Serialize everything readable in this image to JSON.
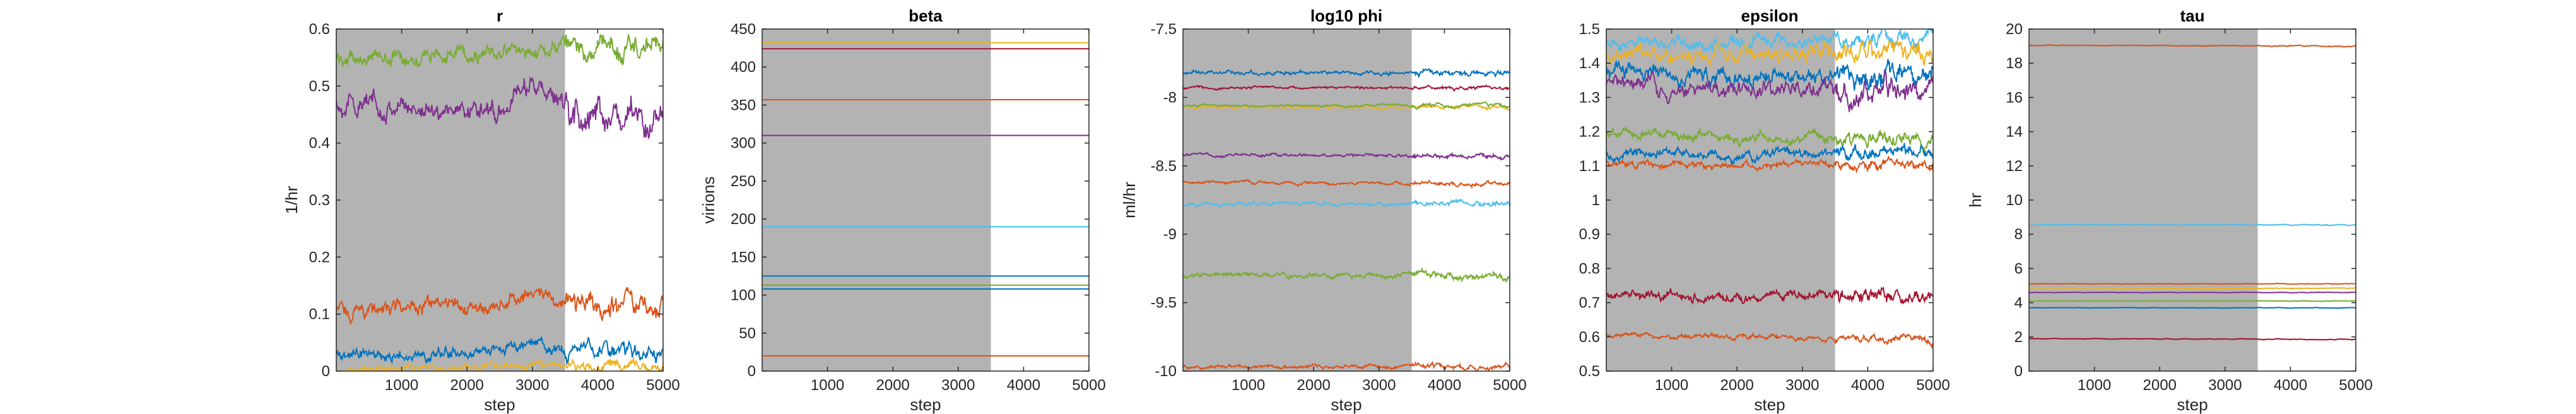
{
  "figure": {
    "background": "#ffffff",
    "shade_color": "#b3b3b3"
  },
  "chart_data": [
    {
      "type": "line",
      "title": "r",
      "xlabel": "step",
      "ylabel": "1/hr",
      "xlim": [
        0,
        5000
      ],
      "ylim": [
        0,
        0.6
      ],
      "xticks": [
        1000,
        2000,
        3000,
        4000,
        5000
      ],
      "yticks": [
        0,
        0.1,
        0.2,
        0.3,
        0.4,
        0.5,
        0.6
      ],
      "ytick_labels": [
        "0",
        "0.1",
        "0.2",
        "0.3",
        "0.4",
        "0.5",
        "0.6"
      ],
      "shaded_region": [
        0,
        3500
      ],
      "grid": false,
      "series": [
        {
          "color": "#77ac30",
          "start": 0.548,
          "end": 0.57,
          "peak_step": 3000,
          "peak": 0.565,
          "noise": 0.012
        },
        {
          "color": "#7e2f8e",
          "start": 0.47,
          "end": 0.44,
          "peak_step": 3000,
          "peak": 0.5,
          "noise": 0.016
        },
        {
          "color": "#d95319",
          "start": 0.107,
          "end": 0.12,
          "peak_step": 3000,
          "peak": 0.14,
          "noise": 0.012
        },
        {
          "color": "#0072bd",
          "start": 0.028,
          "end": 0.035,
          "peak_step": 3000,
          "peak": 0.05,
          "noise": 0.009
        },
        {
          "color": "#edb120",
          "start": 0.003,
          "end": 0.01,
          "peak_step": 3000,
          "peak": 0.012,
          "noise": 0.005
        }
      ]
    },
    {
      "type": "line",
      "title": "beta",
      "xlabel": "step",
      "ylabel": "virions",
      "xlim": [
        0,
        5000
      ],
      "ylim": [
        0,
        450
      ],
      "xticks": [
        1000,
        2000,
        3000,
        4000,
        5000
      ],
      "yticks": [
        0,
        50,
        100,
        150,
        200,
        250,
        300,
        350,
        400,
        450
      ],
      "ytick_labels": [
        "0",
        "50",
        "100",
        "150",
        "200",
        "250",
        "300",
        "350",
        "400",
        "450"
      ],
      "shaded_region": [
        0,
        3500
      ],
      "grid": false,
      "series": [
        {
          "color": "#edb120",
          "start": 432,
          "end": 432,
          "noise": 0
        },
        {
          "color": "#a2142f",
          "start": 424,
          "end": 424,
          "noise": 0
        },
        {
          "color": "#d95319",
          "start": 357,
          "end": 357,
          "noise": 0
        },
        {
          "color": "#7e2f8e",
          "start": 310,
          "end": 310,
          "noise": 0
        },
        {
          "color": "#4dbeee",
          "start": 190,
          "end": 190,
          "noise": 0
        },
        {
          "color": "#0072bd",
          "start": 125,
          "end": 125,
          "noise": 0
        },
        {
          "color": "#77ac30",
          "start": 113,
          "end": 113,
          "noise": 0
        },
        {
          "color": "#0072bd",
          "start": 108,
          "end": 108,
          "noise": 0
        },
        {
          "color": "#d95319",
          "start": 20,
          "end": 20,
          "noise": 0
        }
      ]
    },
    {
      "type": "line",
      "title": "log10 phi",
      "xlabel": "step",
      "ylabel": "ml/hr",
      "xlim": [
        0,
        5000
      ],
      "ylim": [
        -10,
        -7.5
      ],
      "xticks": [
        1000,
        2000,
        3000,
        4000,
        5000
      ],
      "yticks": [
        -10,
        -9.5,
        -9,
        -8.5,
        -8,
        -7.5
      ],
      "ytick_labels": [
        "-10",
        "-9.5",
        "-9",
        "-8.5",
        "-8",
        "-7.5"
      ],
      "shaded_region": [
        0,
        3500
      ],
      "grid": false,
      "series": [
        {
          "color": "#0072bd",
          "start": -7.82,
          "end": -7.82,
          "noise": 0.012
        },
        {
          "color": "#a2142f",
          "start": -7.93,
          "end": -7.93,
          "noise": 0.008
        },
        {
          "color": "#edb120",
          "start": -8.07,
          "end": -8.07,
          "noise": 0.008
        },
        {
          "color": "#77ac30",
          "start": -8.06,
          "end": -8.06,
          "noise": 0.008
        },
        {
          "color": "#7e2f8e",
          "start": -8.42,
          "end": -8.43,
          "noise": 0.01
        },
        {
          "color": "#d95319",
          "start": -8.62,
          "end": -8.63,
          "noise": 0.009
        },
        {
          "color": "#4dbeee",
          "start": -8.78,
          "end": -8.78,
          "noise": 0.012
        },
        {
          "color": "#77ac30",
          "start": -9.3,
          "end": -9.3,
          "noise": 0.015
        },
        {
          "color": "#d95319",
          "start": -9.97,
          "end": -9.97,
          "noise": 0.012
        }
      ]
    },
    {
      "type": "line",
      "title": "epsilon",
      "xlabel": "step",
      "ylabel": "",
      "xlim": [
        0,
        5000
      ],
      "ylim": [
        0.5,
        1.5
      ],
      "xticks": [
        1000,
        2000,
        3000,
        4000,
        5000
      ],
      "yticks": [
        0.5,
        0.6,
        0.7,
        0.8,
        0.9,
        1,
        1.1,
        1.2,
        1.3,
        1.4,
        1.5
      ],
      "ytick_labels": [
        "0.5",
        "0.6",
        "0.7",
        "0.8",
        "0.9",
        "1",
        "1.1",
        "1.2",
        "1.3",
        "1.4",
        "1.5"
      ],
      "shaded_region": [
        0,
        3500
      ],
      "grid": false,
      "series": [
        {
          "color": "#4dbeee",
          "start": 1.45,
          "end": 1.48,
          "noise": 0.015
        },
        {
          "color": "#edb120",
          "start": 1.42,
          "end": 1.44,
          "noise": 0.018
        },
        {
          "color": "#0072bd",
          "start": 1.37,
          "end": 1.36,
          "noise": 0.02
        },
        {
          "color": "#7e2f8e",
          "start": 1.33,
          "end": 1.32,
          "noise": 0.02
        },
        {
          "color": "#77ac30",
          "start": 1.19,
          "end": 1.18,
          "noise": 0.012
        },
        {
          "color": "#0072bd",
          "start": 1.13,
          "end": 1.14,
          "noise": 0.012
        },
        {
          "color": "#d95319",
          "start": 1.105,
          "end": 1.1,
          "noise": 0.008
        },
        {
          "color": "#a2142f",
          "start": 0.72,
          "end": 0.72,
          "noise": 0.012
        },
        {
          "color": "#d95319",
          "start": 0.605,
          "end": 0.59,
          "noise": 0.006
        }
      ]
    },
    {
      "type": "line",
      "title": "tau",
      "xlabel": "step",
      "ylabel": "hr",
      "xlim": [
        0,
        5000
      ],
      "ylim": [
        0,
        20
      ],
      "xticks": [
        1000,
        2000,
        3000,
        4000,
        5000
      ],
      "yticks": [
        0,
        2,
        4,
        6,
        8,
        10,
        12,
        14,
        16,
        18,
        20
      ],
      "ytick_labels": [
        "0",
        "2",
        "4",
        "6",
        "8",
        "10",
        "12",
        "14",
        "16",
        "18",
        "20"
      ],
      "shaded_region": [
        0,
        3500
      ],
      "grid": false,
      "series": [
        {
          "color": "#d95319",
          "start": 19.05,
          "end": 19.0,
          "noise": 0.02
        },
        {
          "color": "#4dbeee",
          "start": 8.55,
          "end": 8.55,
          "noise": 0.02
        },
        {
          "color": "#d95319",
          "start": 5.1,
          "end": 5.1,
          "noise": 0.01
        },
        {
          "color": "#edb120",
          "start": 4.8,
          "end": 4.85,
          "noise": 0.01
        },
        {
          "color": "#7e2f8e",
          "start": 4.6,
          "end": 4.6,
          "noise": 0.01
        },
        {
          "color": "#77ac30",
          "start": 4.1,
          "end": 4.1,
          "noise": 0.01
        },
        {
          "color": "#0072bd",
          "start": 3.7,
          "end": 3.7,
          "noise": 0.01
        },
        {
          "color": "#a2142f",
          "start": 1.9,
          "end": 1.85,
          "noise": 0.015
        }
      ]
    }
  ]
}
